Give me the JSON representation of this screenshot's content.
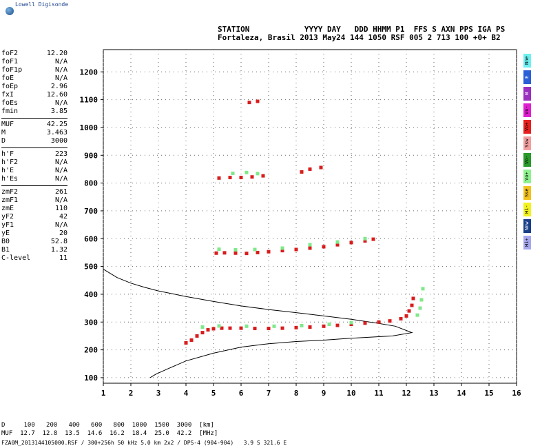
{
  "logo": {
    "text": "Lowell Digisonde",
    "icon": "globe-icon"
  },
  "header": {
    "line1": "STATION            YYYY DAY   DDD HHMM P1  FFS S AXN PPS IGA PS",
    "line2": "Fortaleza, Brasil 2013 May24 144 1050 RSF 005 2 713 100 +0+ B2"
  },
  "params": {
    "group1": [
      {
        "k": "foF2",
        "v": "12.20"
      },
      {
        "k": "foF1",
        "v": "N/A"
      },
      {
        "k": "foF1p",
        "v": "N/A"
      },
      {
        "k": "foE",
        "v": "N/A"
      },
      {
        "k": "foEp",
        "v": "2.96"
      },
      {
        "k": "fxI",
        "v": "12.60"
      },
      {
        "k": "foEs",
        "v": "N/A"
      },
      {
        "k": "fmin",
        "v": "3.85"
      }
    ],
    "group2": [
      {
        "k": "MUF",
        "v": "42.25"
      },
      {
        "k": "M",
        "v": "3.463"
      },
      {
        "k": "D",
        "v": "3000"
      }
    ],
    "group3": [
      {
        "k": "h'F",
        "v": "223"
      },
      {
        "k": "h'F2",
        "v": "N/A"
      },
      {
        "k": "h'E",
        "v": "N/A"
      },
      {
        "k": "h'Es",
        "v": "N/A"
      }
    ],
    "group4": [
      {
        "k": "zmF2",
        "v": "261"
      },
      {
        "k": "zmF1",
        "v": "N/A"
      },
      {
        "k": "zmE",
        "v": "110"
      },
      {
        "k": "yF2",
        "v": "42"
      },
      {
        "k": "yF1",
        "v": "N/A"
      },
      {
        "k": "yE",
        "v": "20"
      },
      {
        "k": "B0",
        "v": "52.8"
      },
      {
        "k": "B1",
        "v": "1.32"
      },
      {
        "k": "C-level",
        "v": "11"
      }
    ]
  },
  "legend": [
    {
      "label": "Nne",
      "color": "#6ff0f0"
    },
    {
      "label": "E",
      "color": "#2a5fd8"
    },
    {
      "label": "W",
      "color": "#9b2fc0"
    },
    {
      "label": "Vo-",
      "color": "#e01fd0"
    },
    {
      "label": "Vo+",
      "color": "#e82020"
    },
    {
      "label": "Ssw",
      "color": "#f2a0a0"
    },
    {
      "label": "Vo-",
      "color": "#2a9a2a"
    },
    {
      "label": "Vo+",
      "color": "#8ef28e"
    },
    {
      "label": "Sse",
      "color": "#f2c21f"
    },
    {
      "label": "Hi-",
      "color": "#f2f21f"
    },
    {
      "label": "Nnw",
      "color": "#1a3f8a"
    },
    {
      "label": "Hi+",
      "color": "#a8a8f0"
    }
  ],
  "footer": {
    "line1": "D     100   200   400   600   800  1000  1500  3000  [km]",
    "line2": "MUF  12.7  12.8  13.5  14.6  16.2  18.4  25.0  42.2  [MHz]",
    "line3": "FZA0M_2013144105000.RSF / 300+256h 50 kHz 5.0 km 2x2 / DPS-4 (904-904)   3.9 S 321.6 E"
  },
  "chart_data": {
    "type": "scatter",
    "title": "",
    "xlabel": "",
    "ylabel": "",
    "xlim": [
      1,
      16
    ],
    "ylim": [
      80,
      1280
    ],
    "xticks": [
      1,
      2,
      3,
      4,
      5,
      6,
      7,
      8,
      9,
      10,
      11,
      12,
      13,
      14,
      15,
      16
    ],
    "yticks": [
      100,
      200,
      300,
      400,
      500,
      600,
      700,
      800,
      900,
      1000,
      1100,
      1200
    ],
    "grid": "dotted",
    "profile": [
      [
        1.0,
        490
      ],
      [
        1.5,
        460
      ],
      [
        2.0,
        440
      ],
      [
        2.5,
        425
      ],
      [
        3.0,
        412
      ],
      [
        4.0,
        392
      ],
      [
        5.0,
        374
      ],
      [
        6.0,
        358
      ],
      [
        7.0,
        345
      ],
      [
        8.0,
        334
      ],
      [
        9.0,
        322
      ],
      [
        10.0,
        310
      ],
      [
        11.0,
        295
      ],
      [
        11.6,
        285
      ],
      [
        12.2,
        262
      ],
      [
        11.5,
        250
      ],
      [
        10.0,
        242
      ],
      [
        9.0,
        235
      ],
      [
        8.0,
        230
      ],
      [
        7.0,
        222
      ],
      [
        6.0,
        210
      ],
      [
        5.0,
        188
      ],
      [
        4.0,
        160
      ],
      [
        3.3,
        130
      ],
      [
        2.9,
        112
      ],
      [
        2.7,
        100
      ]
    ],
    "traces": [
      {
        "name": "O-mode",
        "color": "#d81c1c",
        "points": [
          [
            4.0,
            225
          ],
          [
            4.2,
            235
          ],
          [
            4.4,
            250
          ],
          [
            4.6,
            262
          ],
          [
            4.8,
            272
          ],
          [
            5.0,
            276
          ],
          [
            5.3,
            278
          ],
          [
            5.6,
            278
          ],
          [
            6.0,
            278
          ],
          [
            6.5,
            277
          ],
          [
            7.0,
            277
          ],
          [
            7.5,
            278
          ],
          [
            8.0,
            280
          ],
          [
            8.5,
            282
          ],
          [
            9.0,
            285
          ],
          [
            9.5,
            288
          ],
          [
            10.0,
            292
          ],
          [
            10.5,
            296
          ],
          [
            11.0,
            300
          ],
          [
            11.4,
            304
          ],
          [
            11.8,
            312
          ],
          [
            12.0,
            322
          ],
          [
            12.1,
            340
          ],
          [
            12.2,
            360
          ],
          [
            12.25,
            385
          ],
          [
            5.1,
            548
          ],
          [
            5.4,
            549
          ],
          [
            5.8,
            548
          ],
          [
            6.2,
            547
          ],
          [
            6.6,
            550
          ],
          [
            7.0,
            553
          ],
          [
            7.5,
            557
          ],
          [
            8.0,
            561
          ],
          [
            8.5,
            566
          ],
          [
            9.0,
            571
          ],
          [
            9.5,
            578
          ],
          [
            10.0,
            586
          ],
          [
            10.5,
            592
          ],
          [
            10.8,
            598
          ],
          [
            5.2,
            818
          ],
          [
            5.6,
            820
          ],
          [
            6.0,
            820
          ],
          [
            6.4,
            822
          ],
          [
            6.8,
            826
          ],
          [
            8.2,
            840
          ],
          [
            8.5,
            850
          ],
          [
            8.9,
            856
          ],
          [
            6.3,
            1090
          ],
          [
            6.6,
            1094
          ]
        ]
      },
      {
        "name": "X-mode",
        "color": "#7fe88a",
        "points": [
          [
            4.6,
            282
          ],
          [
            5.2,
            286
          ],
          [
            6.2,
            285
          ],
          [
            7.2,
            285
          ],
          [
            8.2,
            287
          ],
          [
            9.2,
            292
          ],
          [
            10.0,
            298
          ],
          [
            12.4,
            325
          ],
          [
            12.5,
            350
          ],
          [
            12.55,
            380
          ],
          [
            12.6,
            420
          ],
          [
            5.2,
            562
          ],
          [
            5.8,
            560
          ],
          [
            6.5,
            561
          ],
          [
            7.5,
            566
          ],
          [
            8.5,
            578
          ],
          [
            9.5,
            588
          ],
          [
            10.5,
            600
          ],
          [
            5.7,
            835
          ],
          [
            6.2,
            838
          ],
          [
            6.6,
            834
          ]
        ]
      }
    ]
  }
}
